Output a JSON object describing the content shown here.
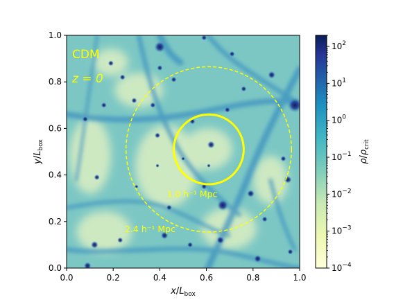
{
  "chart_data": {
    "type": "heatmap",
    "description_labels": {
      "model": "CDM",
      "redshift": "z = 0"
    },
    "xlabel": "x/L_box",
    "ylabel": "y/L_box",
    "colorbar_label": "ρ/ρ_crit",
    "xlim": [
      0.0,
      1.0
    ],
    "ylim": [
      0.0,
      1.0
    ],
    "xticks": [
      "0.0",
      "0.2",
      "0.4",
      "0.6",
      "0.8",
      "1.0"
    ],
    "yticks": [
      "0.0",
      "0.2",
      "0.4",
      "0.6",
      "0.8",
      "1.0"
    ],
    "colorbar": {
      "scale": "log",
      "range": [
        0.0001,
        200
      ],
      "ticks": [
        {
          "label": "10^-4",
          "value": 0.0001
        },
        {
          "label": "10^-3",
          "value": 0.001
        },
        {
          "label": "10^-2",
          "value": 0.01
        },
        {
          "label": "10^-1",
          "value": 0.1
        },
        {
          "label": "10^0",
          "value": 1
        },
        {
          "label": "10^1",
          "value": 10
        },
        {
          "label": "10^2",
          "value": 100
        }
      ],
      "colormap": "YlGnBu"
    },
    "annotations": [
      {
        "kind": "circle",
        "style": "solid",
        "center": [
          0.61,
          0.51
        ],
        "radius": 0.15,
        "label": "1.0 h⁻¹ Mpc",
        "label_pos": [
          0.43,
          0.305
        ]
      },
      {
        "kind": "circle",
        "style": "dashed",
        "center": [
          0.61,
          0.51
        ],
        "radius": 0.355,
        "label": "2.4 h⁻¹ Mpc",
        "label_pos": [
          0.25,
          0.155
        ]
      }
    ],
    "halos": [
      {
        "x": 0.39,
        "y": 0.44,
        "s": 2
      },
      {
        "x": 0.44,
        "y": 0.26,
        "s": 3
      },
      {
        "x": 0.42,
        "y": 0.14,
        "s": 4
      },
      {
        "x": 0.59,
        "y": 0.35,
        "s": 3
      },
      {
        "x": 0.67,
        "y": 0.27,
        "s": 6
      },
      {
        "x": 0.66,
        "y": 0.12,
        "s": 4
      },
      {
        "x": 0.79,
        "y": 0.32,
        "s": 4
      },
      {
        "x": 0.85,
        "y": 0.21,
        "s": 3
      },
      {
        "x": 0.82,
        "y": 0.04,
        "s": 4
      },
      {
        "x": 0.95,
        "y": 0.38,
        "s": 4
      },
      {
        "x": 0.93,
        "y": 0.47,
        "s": 3
      },
      {
        "x": 0.96,
        "y": 0.07,
        "s": 3
      },
      {
        "x": 0.98,
        "y": 0.7,
        "s": 8
      },
      {
        "x": 0.88,
        "y": 0.83,
        "s": 4
      },
      {
        "x": 0.76,
        "y": 0.77,
        "s": 3
      },
      {
        "x": 0.69,
        "y": 0.68,
        "s": 3
      },
      {
        "x": 0.62,
        "y": 0.53,
        "s": 4
      },
      {
        "x": 0.54,
        "y": 0.63,
        "s": 3
      },
      {
        "x": 0.46,
        "y": 0.81,
        "s": 3
      },
      {
        "x": 0.4,
        "y": 0.86,
        "s": 3
      },
      {
        "x": 0.37,
        "y": 0.7,
        "s": 3
      },
      {
        "x": 0.39,
        "y": 0.57,
        "s": 3
      },
      {
        "x": 0.29,
        "y": 0.72,
        "s": 3
      },
      {
        "x": 0.24,
        "y": 0.82,
        "s": 3
      },
      {
        "x": 0.4,
        "y": 0.95,
        "s": 6
      },
      {
        "x": 0.19,
        "y": 0.88,
        "s": 3
      },
      {
        "x": 0.16,
        "y": 0.7,
        "s": 3
      },
      {
        "x": 0.08,
        "y": 0.64,
        "s": 3
      },
      {
        "x": 0.13,
        "y": 0.39,
        "s": 3
      },
      {
        "x": 0.12,
        "y": 0.1,
        "s": 4
      },
      {
        "x": 0.09,
        "y": 0.01,
        "s": 4
      },
      {
        "x": 0.23,
        "y": 0.12,
        "s": 3
      },
      {
        "x": 0.59,
        "y": 0.99,
        "s": 3
      },
      {
        "x": 0.71,
        "y": 0.92,
        "s": 3
      },
      {
        "x": 0.53,
        "y": 0.1,
        "s": 3
      },
      {
        "x": 0.3,
        "y": 0.35,
        "s": 2
      },
      {
        "x": 0.61,
        "y": 0.44,
        "s": 2
      },
      {
        "x": 0.5,
        "y": 0.47,
        "s": 2
      }
    ]
  }
}
